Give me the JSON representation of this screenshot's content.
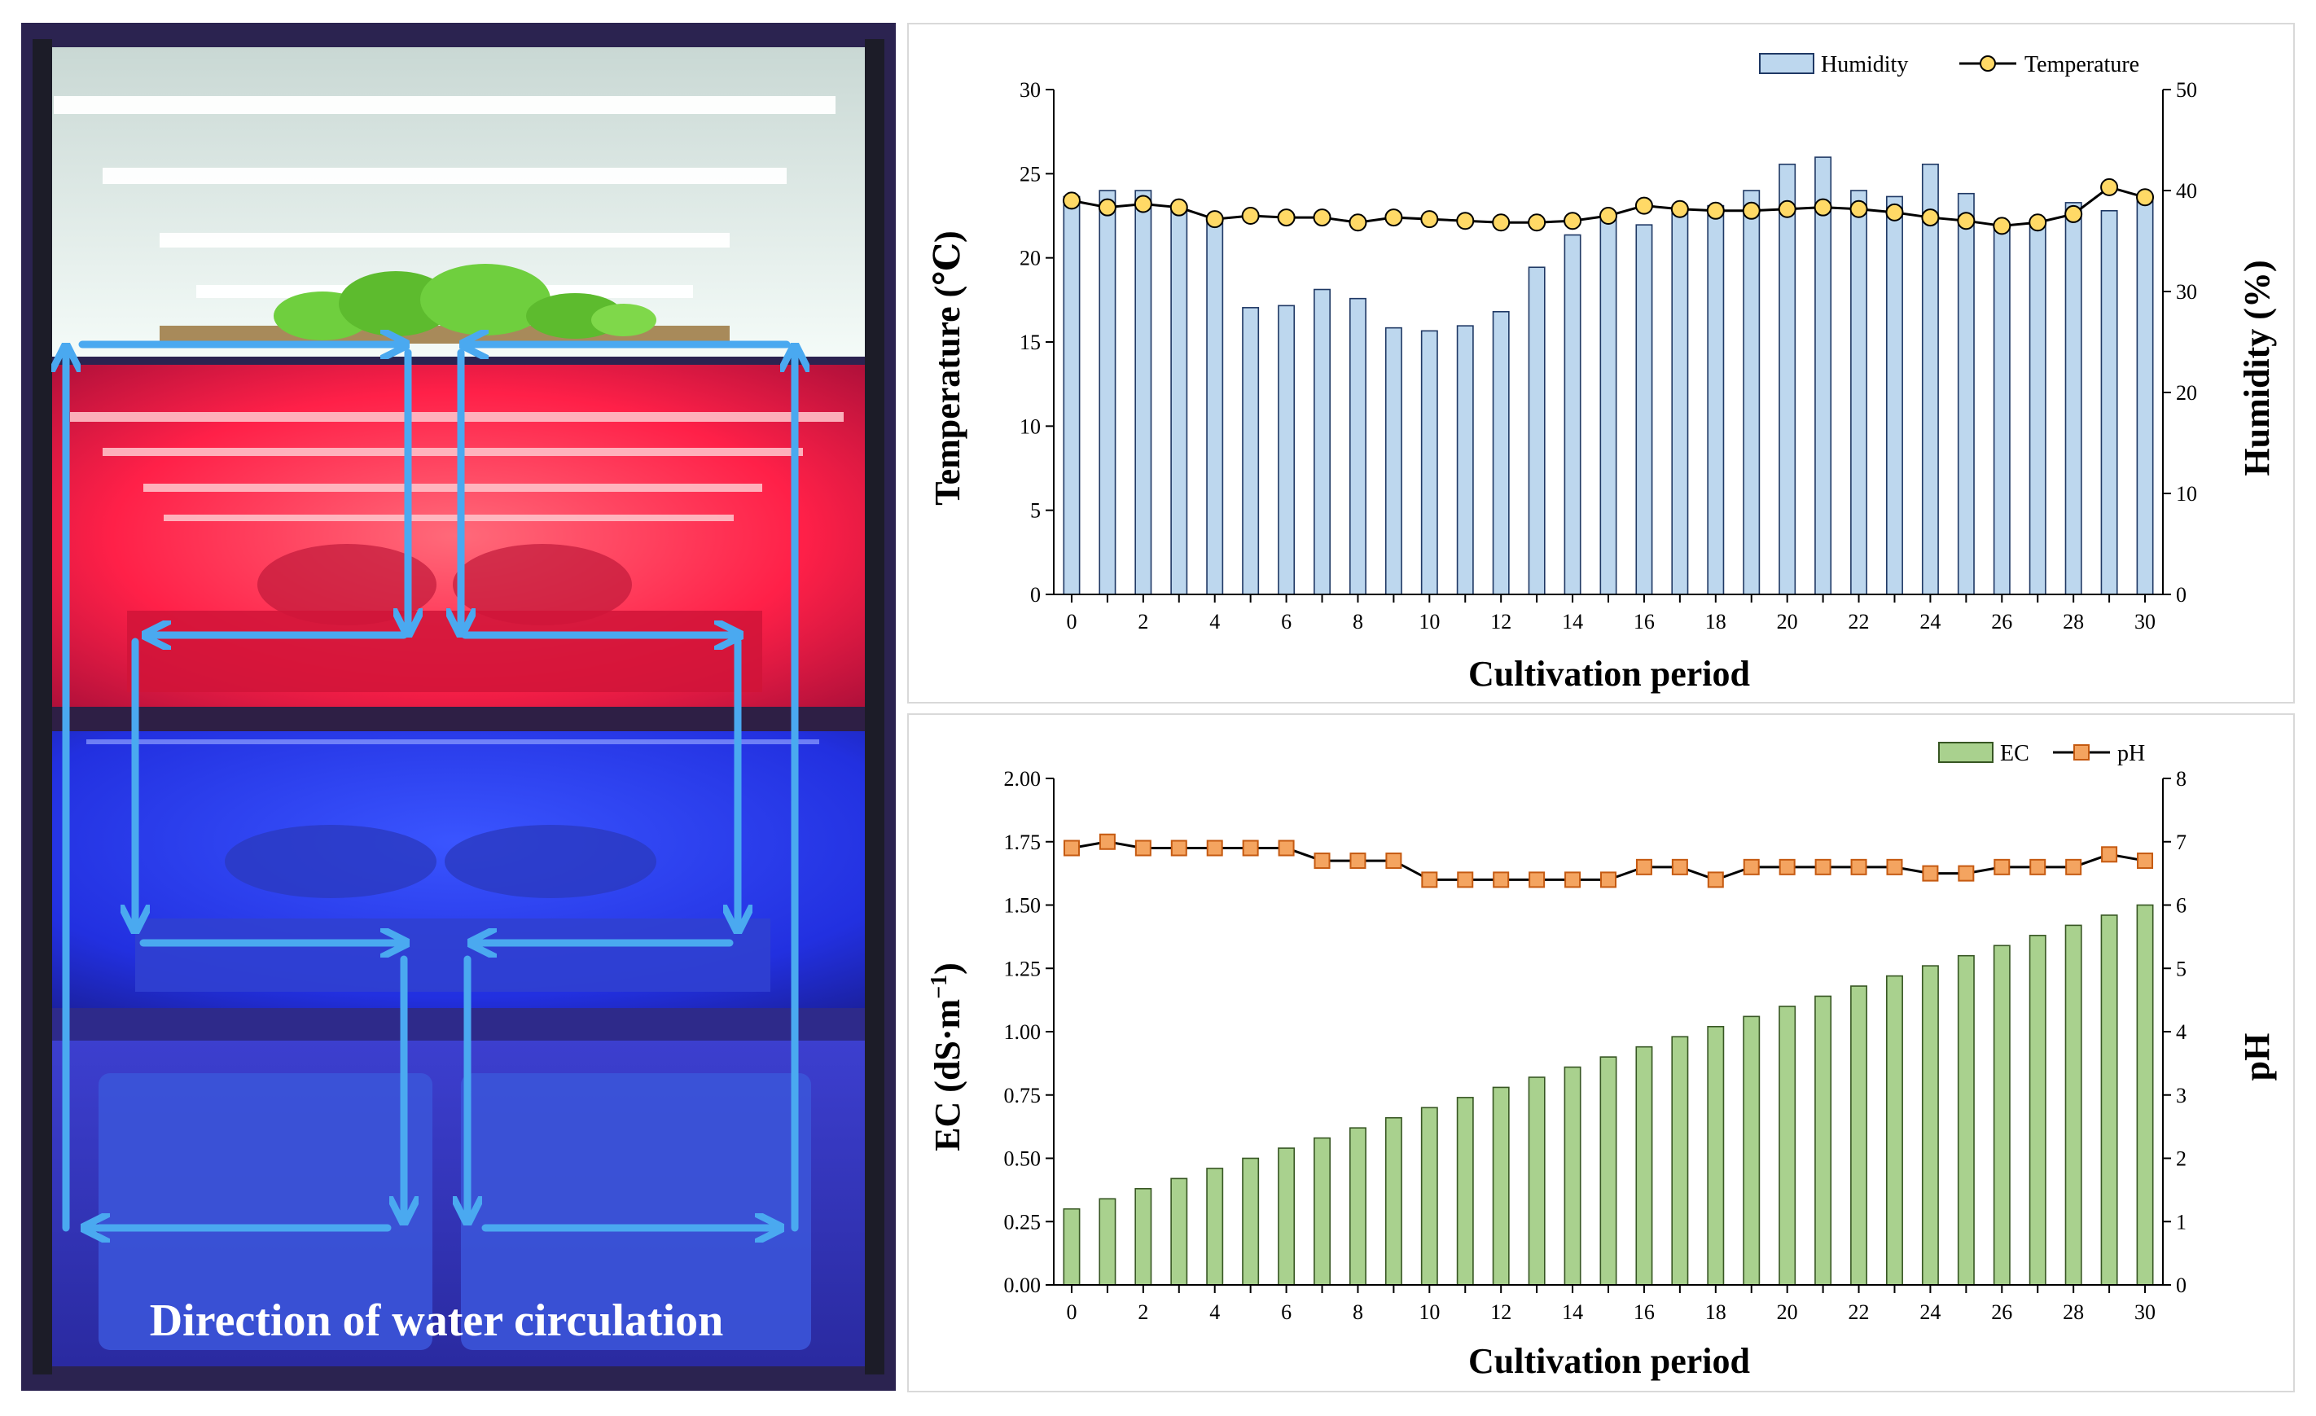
{
  "photo": {
    "caption": "Direction of water circulation",
    "colors": {
      "white_tier": "#e8f2ef",
      "red_tier": "#ff2a4f",
      "blue_tier": "#2a3dff",
      "arrow": "#4aa9f0",
      "frame": "#2a2a3a"
    }
  },
  "chart_data": [
    {
      "type": "bar+line",
      "title": "",
      "xlabel": "Cultivation period",
      "ylabel_left": "Temperature (℃)",
      "ylabel_right": "Humidity (%)",
      "x_ticks": [
        "0",
        "2",
        "4",
        "6",
        "8",
        "10",
        "12",
        "14",
        "16",
        "18",
        "20",
        "22",
        "24",
        "26",
        "28",
        "30"
      ],
      "x": [
        0,
        1,
        2,
        3,
        4,
        5,
        6,
        7,
        8,
        9,
        10,
        11,
        12,
        13,
        14,
        15,
        16,
        17,
        18,
        19,
        20,
        21,
        22,
        23,
        24,
        25,
        26,
        27,
        28,
        29,
        30
      ],
      "ylim_left": [
        0,
        30
      ],
      "ylim_right": [
        0,
        50
      ],
      "yticks_left": [
        "0",
        "5",
        "10",
        "15",
        "20",
        "25",
        "30"
      ],
      "yticks_right": [
        "0",
        "10",
        "20",
        "30",
        "40",
        "50"
      ],
      "legend": [
        "Humidity",
        "Temperature"
      ],
      "series": [
        {
          "name": "Humidity",
          "axis": "right",
          "kind": "bar",
          "color": "#bdd7ee",
          "values": [
            39.4,
            40.0,
            40.0,
            38.3,
            37.3,
            28.4,
            28.6,
            30.2,
            29.3,
            26.4,
            26.1,
            26.6,
            28.0,
            32.4,
            35.6,
            37.3,
            36.6,
            38.2,
            38.5,
            40.0,
            42.6,
            43.3,
            40.0,
            39.4,
            42.6,
            39.7,
            36.3,
            36.6,
            38.8,
            38.0,
            39.4
          ]
        },
        {
          "name": "Temperature",
          "axis": "left",
          "kind": "line",
          "color": "#ffd966",
          "values": [
            23.4,
            23.0,
            23.2,
            23.0,
            22.3,
            22.5,
            22.4,
            22.4,
            22.1,
            22.4,
            22.3,
            22.2,
            22.1,
            22.1,
            22.2,
            22.5,
            23.1,
            22.9,
            22.8,
            22.8,
            22.9,
            23.0,
            22.9,
            22.7,
            22.4,
            22.2,
            21.9,
            22.1,
            22.6,
            24.2,
            23.6
          ]
        }
      ]
    },
    {
      "type": "bar+line",
      "title": "",
      "xlabel": "Cultivation period",
      "ylabel_left": "EC (dS·m",
      "ylabel_left_sup": "−1",
      "ylabel_left_end": ")",
      "ylabel_right": "pH",
      "x_ticks": [
        "0",
        "2",
        "4",
        "6",
        "8",
        "10",
        "12",
        "14",
        "16",
        "18",
        "20",
        "22",
        "24",
        "26",
        "28",
        "30"
      ],
      "x": [
        0,
        1,
        2,
        3,
        4,
        5,
        6,
        7,
        8,
        9,
        10,
        11,
        12,
        13,
        14,
        15,
        16,
        17,
        18,
        19,
        20,
        21,
        22,
        23,
        24,
        25,
        26,
        27,
        28,
        29,
        30
      ],
      "ylim_left": [
        0,
        2
      ],
      "ylim_right": [
        0,
        8
      ],
      "yticks_left": [
        "0.00",
        "0.25",
        "0.50",
        "0.75",
        "1.00",
        "1.25",
        "1.50",
        "1.75",
        "2.00"
      ],
      "yticks_right": [
        "0",
        "1",
        "2",
        "3",
        "4",
        "5",
        "6",
        "7",
        "8"
      ],
      "legend": [
        "EC",
        "pH"
      ],
      "series": [
        {
          "name": "EC",
          "axis": "left",
          "kind": "bar",
          "color": "#a9d18e",
          "values": [
            0.3,
            0.34,
            0.38,
            0.42,
            0.46,
            0.5,
            0.54,
            0.58,
            0.62,
            0.66,
            0.7,
            0.74,
            0.78,
            0.82,
            0.86,
            0.9,
            0.94,
            0.98,
            1.02,
            1.06,
            1.1,
            1.14,
            1.18,
            1.22,
            1.26,
            1.3,
            1.34,
            1.38,
            1.42,
            1.46,
            1.5
          ]
        },
        {
          "name": "pH",
          "axis": "right",
          "kind": "line",
          "color": "#f4a460",
          "values": [
            6.9,
            7.0,
            6.9,
            6.9,
            6.9,
            6.9,
            6.9,
            6.7,
            6.7,
            6.7,
            6.4,
            6.4,
            6.4,
            6.4,
            6.4,
            6.4,
            6.6,
            6.6,
            6.4,
            6.6,
            6.6,
            6.6,
            6.6,
            6.6,
            6.5,
            6.5,
            6.6,
            6.6,
            6.6,
            6.8,
            6.7
          ]
        }
      ]
    }
  ]
}
